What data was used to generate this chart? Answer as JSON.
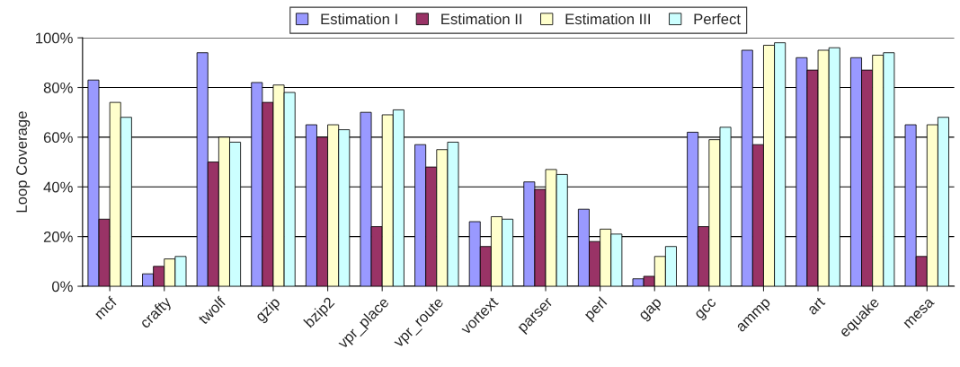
{
  "chart_data": {
    "type": "bar",
    "ylabel": "Loop Coverage",
    "categories": [
      "mcf",
      "crafty",
      "twolf",
      "gzip",
      "bzip2",
      "vpr_place",
      "vpr_route",
      "vortext",
      "parser",
      "perl",
      "gap",
      "gcc",
      "ammp",
      "art",
      "equake",
      "mesa"
    ],
    "series": [
      {
        "name": "Estimation I",
        "color": "#9999ff",
        "values": [
          83,
          5,
          94,
          82,
          65,
          70,
          57,
          26,
          42,
          31,
          3,
          62,
          95,
          92,
          92,
          65
        ]
      },
      {
        "name": "Estimation II",
        "color": "#993366",
        "values": [
          27,
          8,
          50,
          74,
          60,
          24,
          48,
          16,
          39,
          18,
          4,
          24,
          57,
          87,
          87,
          12
        ]
      },
      {
        "name": "Estimation III",
        "color": "#ffffcc",
        "values": [
          74,
          11,
          60,
          81,
          65,
          69,
          55,
          28,
          47,
          23,
          12,
          59,
          97,
          95,
          93,
          65
        ]
      },
      {
        "name": "Perfect",
        "color": "#ccffff",
        "values": [
          68,
          12,
          58,
          78,
          63,
          71,
          58,
          27,
          45,
          21,
          16,
          64,
          98,
          96,
          94,
          68
        ]
      }
    ],
    "ylim": [
      0,
      100
    ],
    "yticks": [
      {
        "value": 0,
        "label": "0%"
      },
      {
        "value": 20,
        "label": "20%"
      },
      {
        "value": 40,
        "label": "40%"
      },
      {
        "value": 60,
        "label": "60%"
      },
      {
        "value": 80,
        "label": "80%"
      },
      {
        "value": 100,
        "label": "100%"
      }
    ],
    "grid": "y",
    "legend": "top"
  }
}
